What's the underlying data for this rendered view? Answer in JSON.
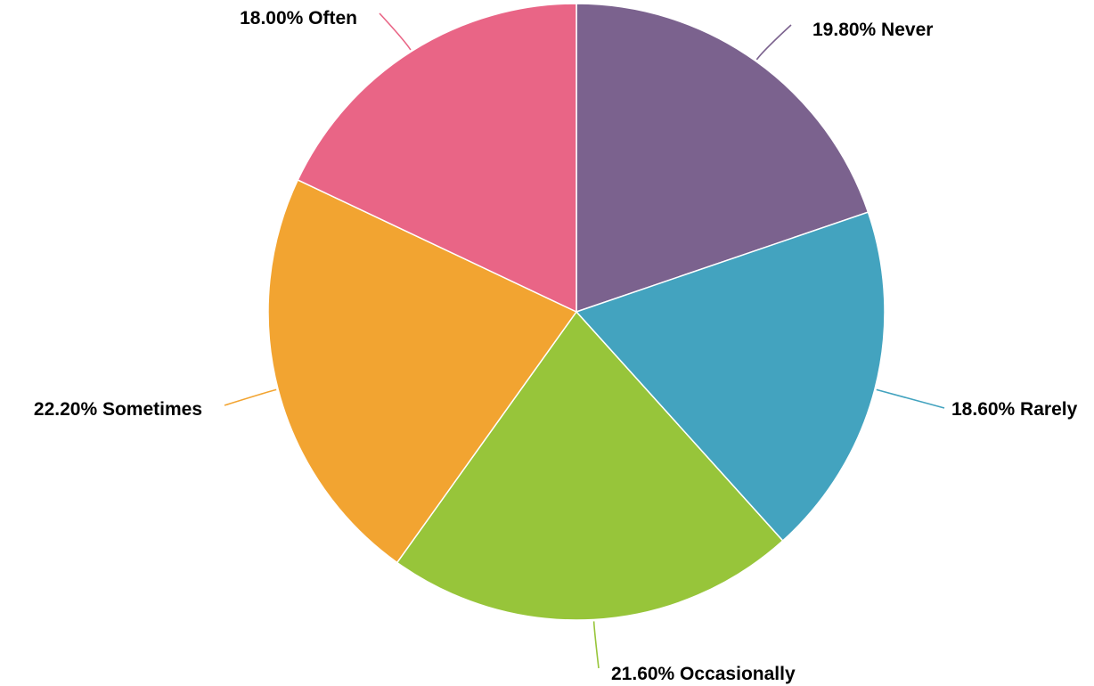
{
  "chart_data": {
    "type": "pie",
    "slices": [
      {
        "label": "Never",
        "value": 19.8,
        "text": "19.80% Never",
        "color": "#7b628e"
      },
      {
        "label": "Rarely",
        "value": 18.6,
        "text": "18.60% Rarely",
        "color": "#43a3bf"
      },
      {
        "label": "Occasionally",
        "value": 21.6,
        "text": "21.60% Occasionally",
        "color": "#97c53a"
      },
      {
        "label": "Sometimes",
        "value": 22.2,
        "text": "22.20% Sometimes",
        "color": "#f2a431"
      },
      {
        "label": "Often",
        "value": 18.0,
        "text": "18.00% Often",
        "color": "#e96586"
      }
    ],
    "start": "top",
    "direction": "clockwise"
  }
}
